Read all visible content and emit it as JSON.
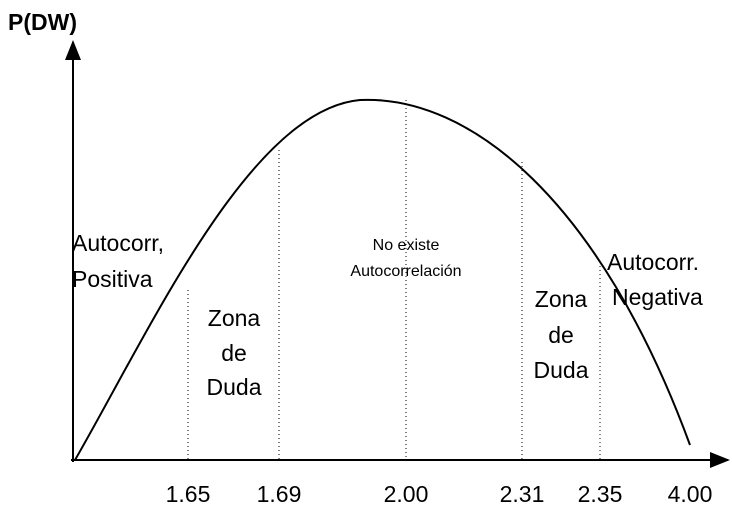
{
  "axis_label": "P(DW)",
  "x_labels": [
    "1.65",
    "1.69",
    "2.00",
    "2.31",
    "2.35",
    "4.00"
  ],
  "regions": [
    {
      "lines": [
        "Autocorr,",
        "Positiva"
      ]
    },
    {
      "lines": [
        "Zona",
        "de",
        "Duda"
      ]
    },
    {
      "lines": [
        "No existe",
        "Autocorrelación"
      ]
    },
    {
      "lines": [
        "Zona",
        "de",
        "Duda"
      ]
    },
    {
      "lines": [
        "Autocorr.",
        "Negativa"
      ]
    }
  ]
}
